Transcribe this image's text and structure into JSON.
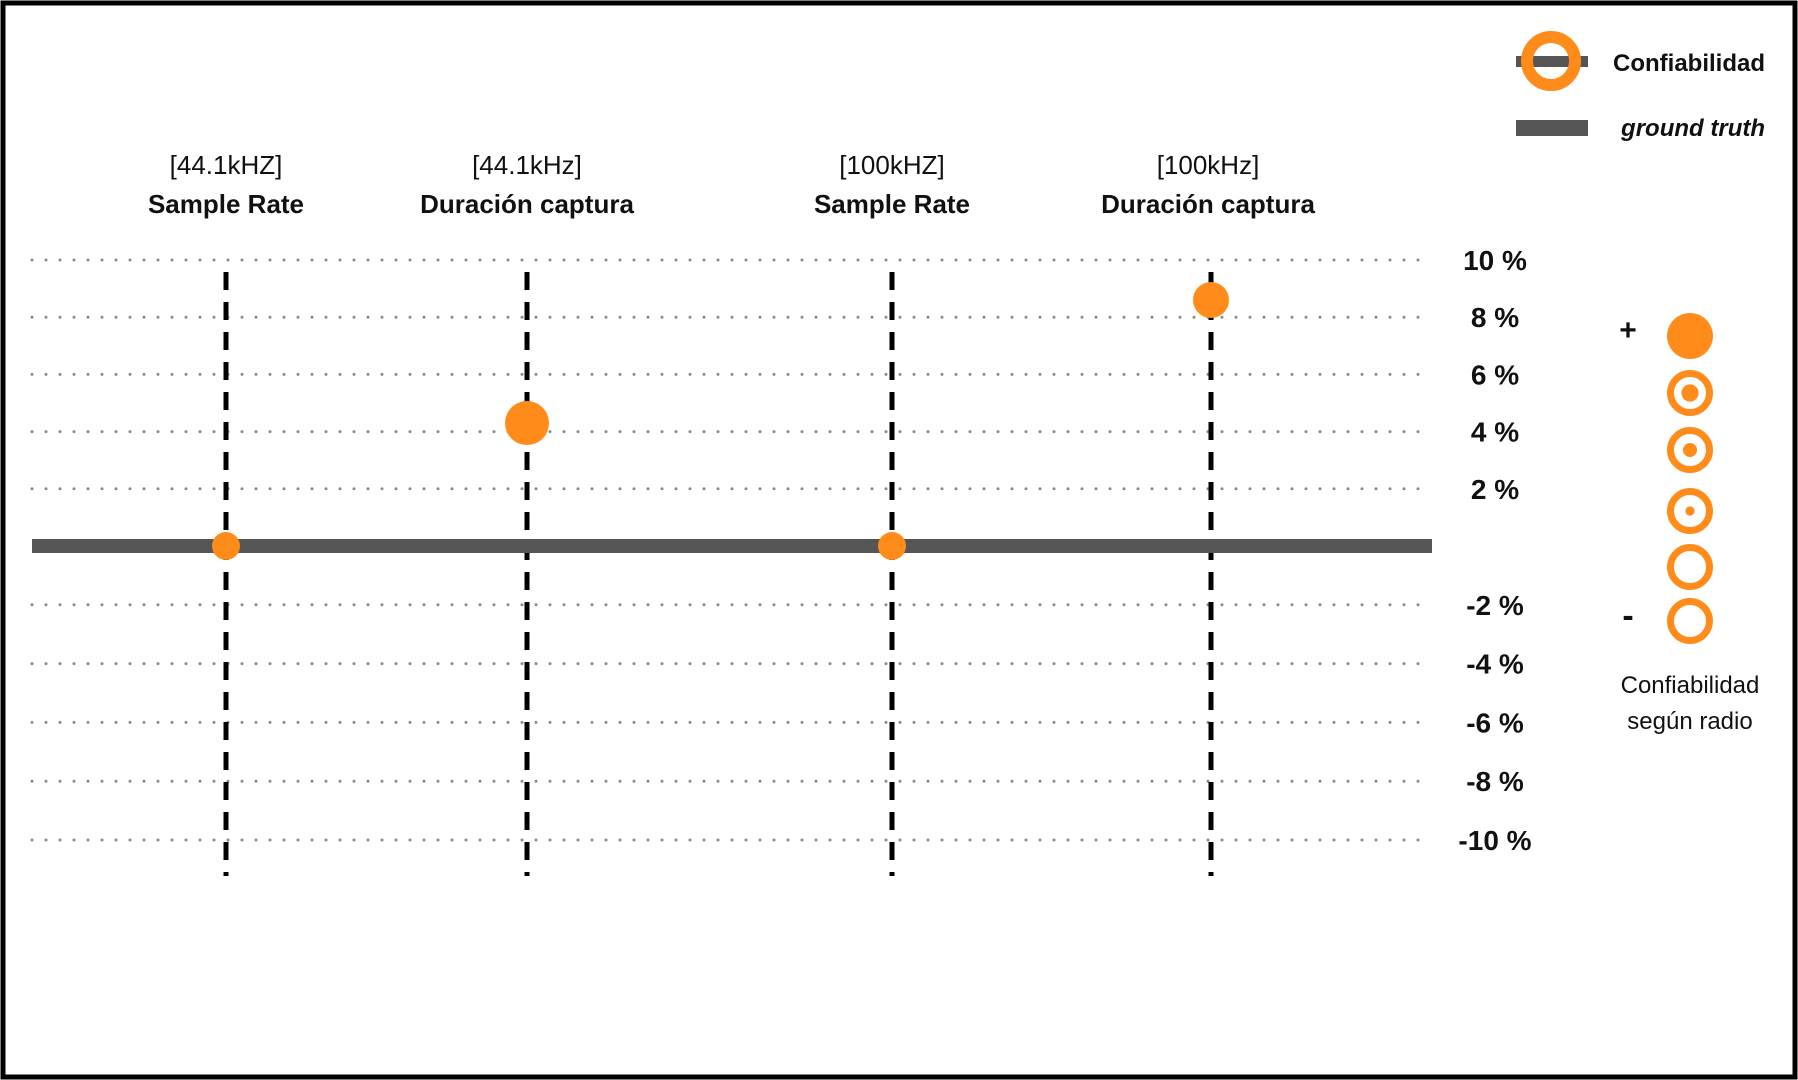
{
  "colors": {
    "accent": "#ff8c1a",
    "ground_truth": "#555555",
    "grid": "#8a8a8a",
    "text": "#111111",
    "frame": "#000000",
    "background": "#ffffff"
  },
  "legend": {
    "confiabilidad_label": "Confiabilidad",
    "ground_truth_label": "ground truth"
  },
  "size_legend": {
    "plus": "+",
    "minus": "-",
    "caption_line1": "Confiabilidad",
    "caption_line2": "según radio",
    "levels": [
      {
        "name": "level-1",
        "fill": 1.0
      },
      {
        "name": "level-2",
        "fill": 0.35
      },
      {
        "name": "level-3",
        "fill": 0.25
      },
      {
        "name": "level-4",
        "fill": 0.1
      },
      {
        "name": "level-5",
        "fill": 0.0
      },
      {
        "name": "level-6",
        "fill": 0.0
      }
    ]
  },
  "chart_data": {
    "type": "scatter",
    "categories": [
      {
        "line1": "[44.1kHZ]",
        "line2": "Sample Rate"
      },
      {
        "line1": "[44.1kHz]",
        "line2": "Duración captura"
      },
      {
        "line1": "[100kHZ]",
        "line2": "Sample Rate"
      },
      {
        "line1": "[100kHz]",
        "line2": "Duración captura"
      }
    ],
    "series": [
      {
        "values": [
          0,
          4.3,
          0,
          8.6
        ],
        "reliability": [
          "low",
          "high",
          "low",
          "medium"
        ]
      }
    ],
    "ground_truth": 0,
    "yticks": [
      {
        "value": 10,
        "label": "10 %"
      },
      {
        "value": 8,
        "label": "8 %"
      },
      {
        "value": 6,
        "label": "6 %"
      },
      {
        "value": 4,
        "label": "4 %"
      },
      {
        "value": 2,
        "label": "2 %"
      },
      {
        "value": -2,
        "label": "-2 %"
      },
      {
        "value": -4,
        "label": "-4 %"
      },
      {
        "value": -6,
        "label": "-6 %"
      },
      {
        "value": -8,
        "label": "-8 %"
      },
      {
        "value": -10,
        "label": "-10 %"
      }
    ],
    "ylim": [
      -10,
      10
    ],
    "grid": true,
    "legend_position": "top-right"
  }
}
